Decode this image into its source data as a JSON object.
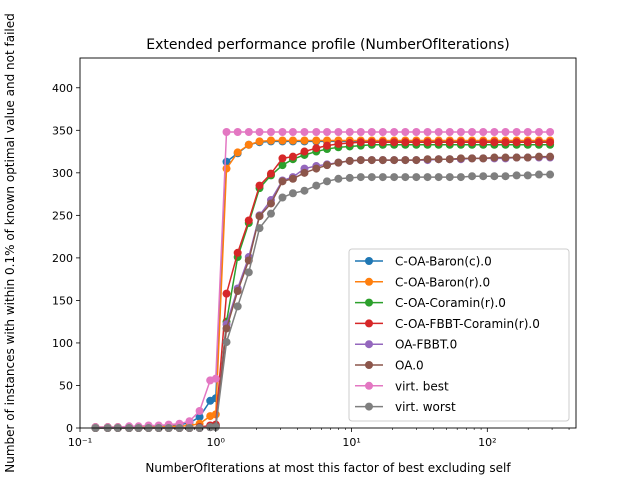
{
  "chart_data": {
    "type": "line",
    "title": "Extended performance profile (NumberOfIterations)",
    "xlabel": "NumberOfIterations at most this factor of best excluding self",
    "ylabel": "Number of instances with within 0.1% of known optimal value and not failed",
    "x_scale": "log",
    "xlim": [
      0.1,
      450
    ],
    "ylim": [
      0,
      435
    ],
    "x_ticks": [
      0.1,
      1,
      10,
      100
    ],
    "x_tick_labels": [
      "10⁻¹",
      "10⁰",
      "10¹",
      "10²"
    ],
    "y_ticks": [
      0,
      50,
      100,
      150,
      200,
      250,
      300,
      350,
      400
    ],
    "y_tick_labels": [
      "0",
      "50",
      "100",
      "150",
      "200",
      "250",
      "300",
      "350",
      "400"
    ],
    "grid": false,
    "legend_position": "lower-right",
    "x": [
      0.13,
      0.16,
      0.19,
      0.23,
      0.27,
      0.32,
      0.38,
      0.45,
      0.54,
      0.64,
      0.76,
      0.91,
      1.0,
      1.2,
      1.45,
      1.75,
      2.1,
      2.55,
      3.1,
      3.7,
      4.5,
      5.5,
      6.6,
      8.0,
      9.7,
      11.7,
      14.1,
      17,
      20.6,
      24.9,
      30,
      36.3,
      43.8,
      52.9,
      63.9,
      77.2,
      93.3,
      112.7,
      136.1,
      164.4,
      198.6,
      240,
      290
    ],
    "series": [
      {
        "name": "C-OA-Baron(c).0",
        "color": "#1f77b4",
        "values": [
          1,
          1,
          1,
          1,
          1,
          2,
          2,
          3,
          4,
          6,
          13,
          32,
          35,
          313,
          323,
          333,
          336,
          337,
          337,
          337,
          337,
          337,
          337,
          337,
          337,
          337,
          337,
          337,
          337,
          337,
          337,
          337,
          337,
          337,
          337,
          337,
          337,
          337,
          337,
          337,
          337,
          337,
          337
        ]
      },
      {
        "name": "C-OA-Baron(r).0",
        "color": "#ff7f0e",
        "values": [
          1,
          1,
          1,
          1,
          1,
          1,
          1,
          2,
          2,
          3,
          5,
          14,
          16,
          305,
          324,
          333,
          337,
          338,
          338,
          338,
          338,
          338,
          338,
          338,
          338,
          338,
          338,
          338,
          338,
          338,
          338,
          338,
          338,
          338,
          338,
          338,
          338,
          338,
          338,
          338,
          338,
          338,
          338
        ]
      },
      {
        "name": "C-OA-Coramin(r).0",
        "color": "#2ca02c",
        "values": [
          0,
          0,
          0,
          0,
          0,
          0,
          0,
          0,
          0,
          0,
          1,
          2,
          3,
          125,
          201,
          241,
          282,
          297,
          309,
          316,
          321,
          325,
          328,
          330,
          331,
          332,
          333,
          333,
          333,
          333,
          333,
          333,
          333,
          333,
          333,
          333,
          333,
          333,
          333,
          333,
          333,
          333,
          333
        ]
      },
      {
        "name": "C-OA-FBBT-Coramin(r).0",
        "color": "#d62728",
        "values": [
          0,
          0,
          0,
          0,
          0,
          0,
          0,
          0,
          0,
          0,
          1,
          3,
          4,
          158,
          206,
          244,
          285,
          299,
          317,
          319,
          325,
          329,
          332,
          334,
          335,
          336,
          336,
          336,
          336,
          336,
          336,
          336,
          336,
          336,
          336,
          336,
          336,
          336,
          336,
          336,
          336,
          336,
          336
        ]
      },
      {
        "name": "OA-FBBT.0",
        "color": "#9467bd",
        "values": [
          0,
          0,
          0,
          0,
          0,
          0,
          0,
          0,
          0,
          0,
          0,
          1,
          2,
          122,
          164,
          201,
          250,
          268,
          291,
          295,
          305,
          308,
          310,
          312,
          314,
          315,
          315,
          315,
          315,
          315,
          315,
          315,
          316,
          316,
          316,
          317,
          317,
          317,
          317,
          318,
          318,
          318,
          318
        ]
      },
      {
        "name": "OA.0",
        "color": "#8c564b",
        "values": [
          0,
          0,
          0,
          0,
          0,
          0,
          0,
          0,
          0,
          0,
          0,
          1,
          2,
          117,
          161,
          197,
          249,
          264,
          290,
          293,
          300,
          305,
          309,
          312,
          314,
          315,
          315,
          315,
          315,
          315,
          315,
          316,
          316,
          316,
          317,
          317,
          317,
          318,
          318,
          318,
          318,
          319,
          319
        ]
      },
      {
        "name": "virt. best",
        "color": "#e377c2",
        "values": [
          1,
          1,
          1,
          2,
          2,
          3,
          3,
          4,
          5,
          8,
          20,
          56,
          58,
          348,
          348,
          348,
          348,
          348,
          348,
          348,
          348,
          348,
          348,
          348,
          348,
          348,
          348,
          348,
          348,
          348,
          348,
          348,
          348,
          348,
          348,
          348,
          348,
          348,
          348,
          348,
          348,
          348,
          348
        ]
      },
      {
        "name": "virt. worst",
        "color": "#7f7f7f",
        "values": [
          0,
          0,
          0,
          0,
          0,
          0,
          0,
          0,
          0,
          0,
          0,
          1,
          1,
          101,
          143,
          183,
          235,
          252,
          271,
          276,
          279,
          285,
          290,
          293,
          294,
          295,
          295,
          295,
          295,
          295,
          295,
          295,
          295,
          295,
          295,
          296,
          296,
          296,
          296,
          297,
          297,
          298,
          298
        ]
      }
    ]
  }
}
